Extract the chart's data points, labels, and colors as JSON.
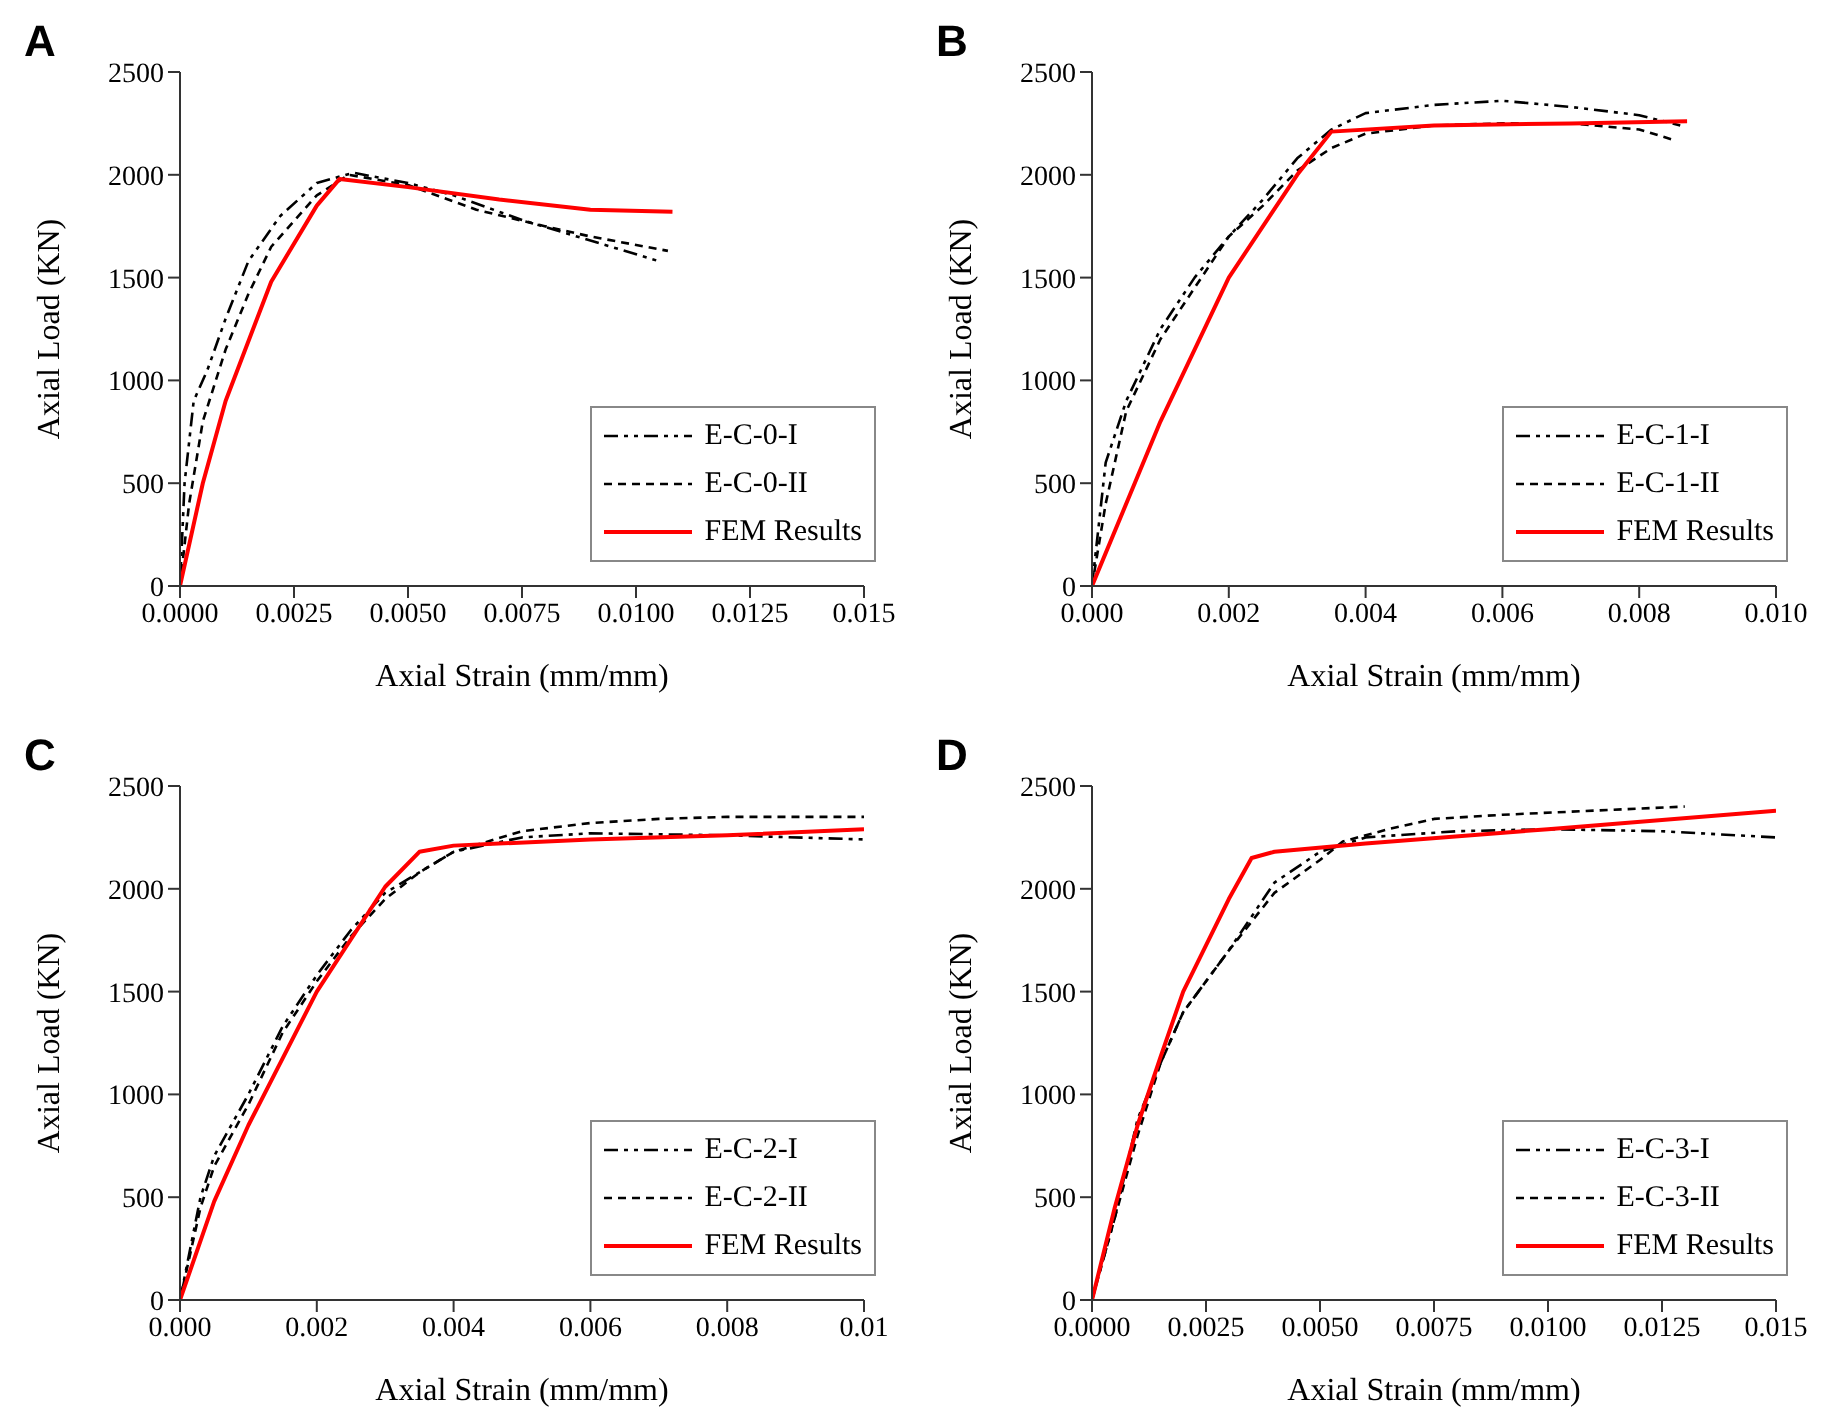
{
  "chart_data": [
    {
      "type": "line",
      "title": "A",
      "xlabel": "Axial Strain (mm/mm)",
      "ylabel": "Axial Load (KN)",
      "xlim": [
        0,
        0.015
      ],
      "xticks": [
        {
          "value": 0,
          "label": "0.0000"
        },
        {
          "value": 0.0025,
          "label": "0.0025"
        },
        {
          "value": 0.005,
          "label": "0.0050"
        },
        {
          "value": 0.0075,
          "label": "0.0075"
        },
        {
          "value": 0.01,
          "label": "0.0100"
        },
        {
          "value": 0.0125,
          "label": "0.0125"
        },
        {
          "value": 0.015,
          "label": "0.015"
        }
      ],
      "ylim": [
        0,
        2500
      ],
      "yticks": [
        0,
        500,
        1000,
        1500,
        2000,
        2500
      ],
      "grid": false,
      "legend": "bottom right",
      "marker": "none",
      "series": [
        {
          "name": "E-C-0-I",
          "color": "#000000",
          "line_style": "dashdot",
          "x": [
            0,
            0.0001,
            0.0003,
            0.0006,
            0.001,
            0.0015,
            0.0022,
            0.003,
            0.0038,
            0.005,
            0.006,
            0.0075,
            0.009,
            0.0105
          ],
          "values": [
            0,
            500,
            900,
            1050,
            1300,
            1580,
            1800,
            1960,
            2010,
            1960,
            1900,
            1780,
            1680,
            1580
          ]
        },
        {
          "name": "E-C-0-II",
          "color": "#000000",
          "line_style": "dashed",
          "x": [
            0,
            0.0002,
            0.0005,
            0.001,
            0.0015,
            0.002,
            0.003,
            0.0037,
            0.005,
            0.0065,
            0.008,
            0.009,
            0.0107
          ],
          "values": [
            0,
            400,
            800,
            1150,
            1420,
            1650,
            1900,
            2000,
            1950,
            1830,
            1750,
            1700,
            1630
          ]
        },
        {
          "name": "FEM Results",
          "color": "#ff0000",
          "line_style": "solid",
          "x": [
            0,
            0.0005,
            0.001,
            0.002,
            0.003,
            0.0035,
            0.005,
            0.007,
            0.009,
            0.0108
          ],
          "values": [
            0,
            500,
            900,
            1480,
            1850,
            1980,
            1940,
            1880,
            1830,
            1820
          ]
        }
      ]
    },
    {
      "type": "line",
      "title": "B",
      "xlabel": "Axial Strain (mm/mm)",
      "ylabel": "Axial Load (KN)",
      "xlim": [
        0,
        0.01
      ],
      "xticks": [
        {
          "value": 0,
          "label": "0.000"
        },
        {
          "value": 0.002,
          "label": "0.002"
        },
        {
          "value": 0.004,
          "label": "0.004"
        },
        {
          "value": 0.006,
          "label": "0.006"
        },
        {
          "value": 0.008,
          "label": "0.008"
        },
        {
          "value": 0.01,
          "label": "0.010"
        }
      ],
      "ylim": [
        0,
        2500
      ],
      "yticks": [
        0,
        500,
        1000,
        1500,
        2000,
        2500
      ],
      "grid": false,
      "legend": "bottom right",
      "marker": "none",
      "series": [
        {
          "name": "E-C-1-I",
          "color": "#000000",
          "line_style": "dashdot",
          "x": [
            0,
            0.0002,
            0.0005,
            0.001,
            0.0015,
            0.002,
            0.0025,
            0.003,
            0.0035,
            0.004,
            0.005,
            0.006,
            0.007,
            0.008,
            0.0086
          ],
          "values": [
            0,
            600,
            900,
            1250,
            1500,
            1700,
            1880,
            2080,
            2220,
            2300,
            2340,
            2360,
            2330,
            2290,
            2240
          ]
        },
        {
          "name": "E-C-1-II",
          "color": "#000000",
          "line_style": "dashed",
          "x": [
            0,
            0.0002,
            0.0005,
            0.001,
            0.0015,
            0.002,
            0.0025,
            0.003,
            0.0035,
            0.004,
            0.005,
            0.006,
            0.007,
            0.008,
            0.0085
          ],
          "values": [
            0,
            400,
            850,
            1200,
            1450,
            1700,
            1850,
            2020,
            2130,
            2200,
            2240,
            2250,
            2250,
            2220,
            2170
          ]
        },
        {
          "name": "FEM Results",
          "color": "#ff0000",
          "line_style": "solid",
          "x": [
            0,
            0.001,
            0.002,
            0.003,
            0.0035,
            0.005,
            0.007,
            0.0087
          ],
          "values": [
            0,
            800,
            1500,
            2000,
            2210,
            2240,
            2250,
            2260
          ]
        }
      ]
    },
    {
      "type": "line",
      "title": "C",
      "xlabel": "Axial Strain (mm/mm)",
      "ylabel": "Axial Load (KN)",
      "xlim": [
        0,
        0.01
      ],
      "xticks": [
        {
          "value": 0,
          "label": "0.000"
        },
        {
          "value": 0.002,
          "label": "0.002"
        },
        {
          "value": 0.004,
          "label": "0.004"
        },
        {
          "value": 0.006,
          "label": "0.006"
        },
        {
          "value": 0.008,
          "label": "0.008"
        },
        {
          "value": 0.01,
          "label": "0.01"
        }
      ],
      "ylim": [
        0,
        2500
      ],
      "yticks": [
        0,
        500,
        1000,
        1500,
        2000,
        2500
      ],
      "grid": false,
      "legend": "bottom right",
      "marker": "none",
      "series": [
        {
          "name": "E-C-2-I",
          "color": "#000000",
          "line_style": "dashdot",
          "x": [
            0,
            0.0003,
            0.0005,
            0.001,
            0.0015,
            0.002,
            0.0025,
            0.003,
            0.0035,
            0.004,
            0.005,
            0.006,
            0.008,
            0.01
          ],
          "values": [
            0,
            500,
            700,
            1000,
            1330,
            1580,
            1800,
            1980,
            2080,
            2180,
            2250,
            2270,
            2260,
            2240
          ]
        },
        {
          "name": "E-C-2-II",
          "color": "#000000",
          "line_style": "dashed",
          "x": [
            0,
            0.0003,
            0.0005,
            0.001,
            0.0015,
            0.002,
            0.0025,
            0.003,
            0.0035,
            0.004,
            0.005,
            0.006,
            0.007,
            0.008,
            0.01
          ],
          "values": [
            0,
            450,
            650,
            950,
            1300,
            1550,
            1770,
            1950,
            2080,
            2180,
            2280,
            2320,
            2340,
            2350,
            2350
          ]
        },
        {
          "name": "FEM Results",
          "color": "#ff0000",
          "line_style": "solid",
          "x": [
            0,
            0.0005,
            0.001,
            0.002,
            0.003,
            0.0035,
            0.004,
            0.006,
            0.008,
            0.01
          ],
          "values": [
            0,
            480,
            850,
            1500,
            2010,
            2180,
            2210,
            2240,
            2260,
            2290
          ]
        }
      ]
    },
    {
      "type": "line",
      "title": "D",
      "xlabel": "Axial Strain (mm/mm)",
      "ylabel": "Axial Load (KN)",
      "xlim": [
        0,
        0.015
      ],
      "xticks": [
        {
          "value": 0,
          "label": "0.0000"
        },
        {
          "value": 0.0025,
          "label": "0.0025"
        },
        {
          "value": 0.005,
          "label": "0.0050"
        },
        {
          "value": 0.0075,
          "label": "0.0075"
        },
        {
          "value": 0.01,
          "label": "0.0100"
        },
        {
          "value": 0.0125,
          "label": "0.0125"
        },
        {
          "value": 0.015,
          "label": "0.015"
        }
      ],
      "ylim": [
        0,
        2500
      ],
      "yticks": [
        0,
        500,
        1000,
        1500,
        2000,
        2500
      ],
      "grid": false,
      "legend": "bottom right",
      "marker": "none",
      "series": [
        {
          "name": "E-C-3-I",
          "color": "#000000",
          "line_style": "dashdot",
          "x": [
            0,
            0.0005,
            0.001,
            0.0015,
            0.002,
            0.003,
            0.004,
            0.005,
            0.006,
            0.008,
            0.01,
            0.0125,
            0.015
          ],
          "values": [
            0,
            400,
            880,
            1150,
            1400,
            1700,
            2030,
            2180,
            2250,
            2280,
            2290,
            2280,
            2250
          ]
        },
        {
          "name": "E-C-3-II",
          "color": "#000000",
          "line_style": "dashed",
          "x": [
            0,
            0.0005,
            0.001,
            0.0015,
            0.002,
            0.003,
            0.004,
            0.005,
            0.0055,
            0.0065,
            0.0075,
            0.009,
            0.011,
            0.013
          ],
          "values": [
            0,
            400,
            800,
            1150,
            1400,
            1700,
            1980,
            2140,
            2230,
            2290,
            2340,
            2360,
            2380,
            2400
          ]
        },
        {
          "name": "FEM Results",
          "color": "#ff0000",
          "line_style": "solid",
          "x": [
            0,
            0.0005,
            0.001,
            0.0015,
            0.002,
            0.003,
            0.0035,
            0.004,
            0.006,
            0.01,
            0.015
          ],
          "values": [
            0,
            450,
            850,
            1180,
            1500,
            1950,
            2150,
            2180,
            2220,
            2290,
            2380
          ]
        }
      ]
    }
  ]
}
